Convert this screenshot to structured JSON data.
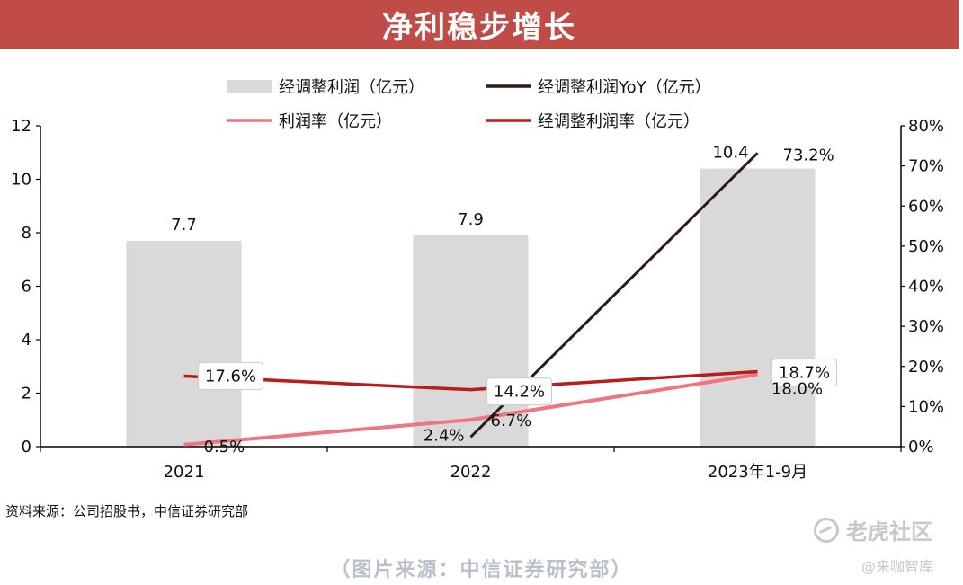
{
  "header": {
    "title": "净利稳步增长"
  },
  "chart_data": {
    "type": "bar",
    "categories": [
      "2021",
      "2022",
      "2023年1-9月"
    ],
    "ylim_left": [
      0,
      12
    ],
    "yticks_left": [
      "0",
      "2",
      "4",
      "6",
      "8",
      "10",
      "12"
    ],
    "ylim_right": [
      0,
      80
    ],
    "yticks_right": [
      "0%",
      "10%",
      "20%",
      "30%",
      "40%",
      "50%",
      "60%",
      "70%",
      "80%"
    ],
    "grid": false,
    "legend_position": "top",
    "bar_series": {
      "name": "经调整利润（亿元）",
      "values": [
        7.7,
        7.9,
        10.4
      ],
      "labels": [
        "7.7",
        "7.9",
        "10.4"
      ],
      "color": "#d9d9d9"
    },
    "line_series": [
      {
        "name": "经调整利润YoY（亿元）",
        "values": [
          null,
          2.4,
          73.2
        ],
        "labels": [
          "",
          "2.4%",
          "73.2%"
        ],
        "color": "#2b1a17",
        "axis": "right"
      },
      {
        "name": "利润率（亿元）",
        "values": [
          0.5,
          6.7,
          18.0
        ],
        "labels": [
          "0.5%",
          "6.7%",
          "18.0%"
        ],
        "color": "#f07582",
        "axis": "right"
      },
      {
        "name": "经调整利润率（亿元）",
        "values": [
          17.6,
          14.2,
          18.7
        ],
        "labels": [
          "17.6%",
          "14.2%",
          "18.7%"
        ],
        "color": "#b81c1c",
        "axis": "right"
      }
    ]
  },
  "footer": {
    "source": "资料来源：公司招股书，中信证券研究部",
    "caption": "（图片来源：中信证券研究部）",
    "watermark": "老虎社区",
    "watermark_sub": "@来咖智库"
  }
}
